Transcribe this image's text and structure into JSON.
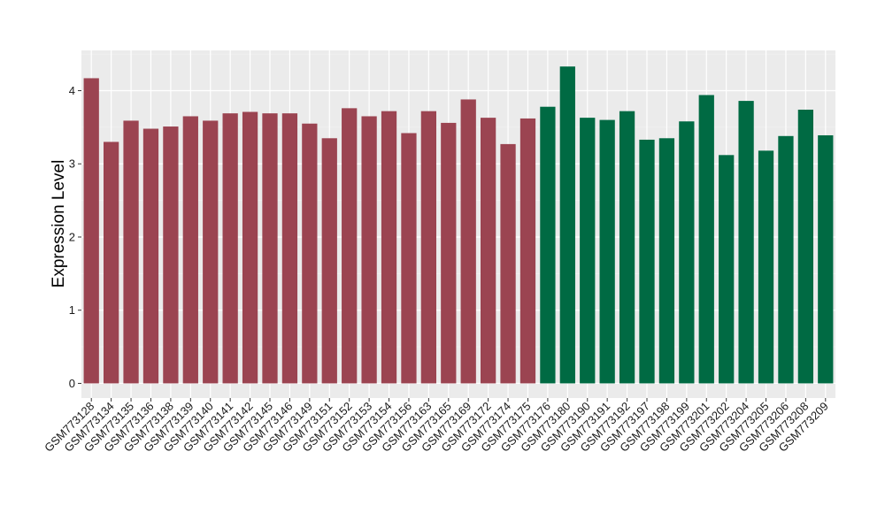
{
  "chart_data": {
    "type": "bar",
    "ylabel": "Expression Level",
    "xlabel": "",
    "ylim": [
      -0.2,
      4.55
    ],
    "yticks": [
      0,
      1,
      2,
      3,
      4
    ],
    "grid": true,
    "panel_background": "#ebebeb",
    "group_colors": [
      "#9b4451",
      "#006a43"
    ],
    "categories": [
      "GSM773128",
      "GSM773134",
      "GSM773135",
      "GSM773136",
      "GSM773138",
      "GSM773139",
      "GSM773140",
      "GSM773141",
      "GSM773142",
      "GSM773145",
      "GSM773146",
      "GSM773149",
      "GSM773151",
      "GSM773152",
      "GSM773153",
      "GSM773154",
      "GSM773156",
      "GSM773163",
      "GSM773165",
      "GSM773169",
      "GSM773172",
      "GSM773174",
      "GSM773175",
      "GSM773176",
      "GSM773180",
      "GSM773190",
      "GSM773191",
      "GSM773192",
      "GSM773197",
      "GSM773198",
      "GSM773199",
      "GSM773201",
      "GSM773202",
      "GSM773204",
      "GSM773205",
      "GSM773206",
      "GSM773208",
      "GSM773209"
    ],
    "values": [
      4.17,
      3.3,
      3.59,
      3.48,
      3.51,
      3.65,
      3.59,
      3.69,
      3.71,
      3.69,
      3.69,
      3.55,
      3.35,
      3.76,
      3.65,
      3.72,
      3.42,
      3.72,
      3.56,
      3.88,
      3.63,
      3.27,
      3.62,
      3.78,
      4.33,
      3.63,
      3.6,
      3.72,
      3.33,
      3.35,
      3.58,
      3.94,
      3.12,
      3.86,
      3.18,
      3.38,
      3.74,
      3.39
    ],
    "group": [
      0,
      0,
      0,
      0,
      0,
      0,
      0,
      0,
      0,
      0,
      0,
      0,
      0,
      0,
      0,
      0,
      0,
      0,
      0,
      0,
      0,
      0,
      0,
      1,
      1,
      1,
      1,
      1,
      1,
      1,
      1,
      1,
      1,
      1,
      1,
      1,
      1,
      1
    ]
  }
}
